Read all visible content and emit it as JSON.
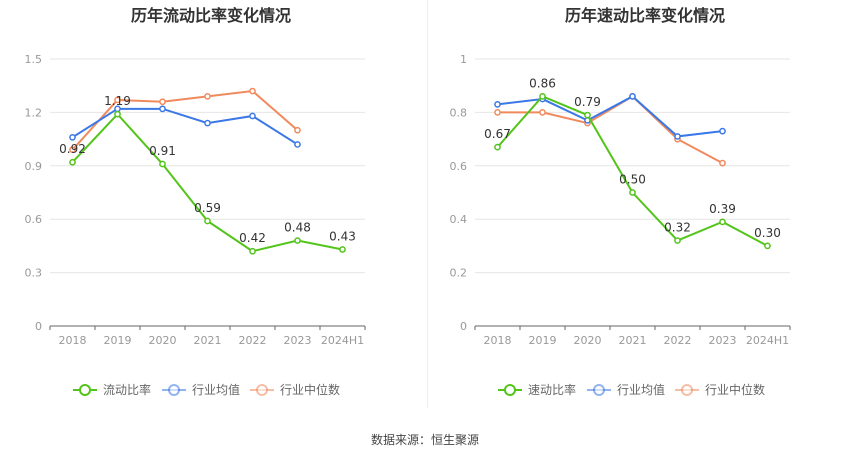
{
  "source_label": "数据来源：恒生聚源",
  "chart_data": [
    {
      "type": "line",
      "title": "历年流动比率变化情况",
      "categories": [
        "2018",
        "2019",
        "2020",
        "2021",
        "2022",
        "2023",
        "2024H1"
      ],
      "ylim": [
        0,
        1.5
      ],
      "yticks": [
        "0",
        "0.3",
        "0.6",
        "0.9",
        "1.2",
        "1.5"
      ],
      "grid": true,
      "legend_position": "bottom",
      "series": [
        {
          "name": "流动比率",
          "color": "#52c41a",
          "values": [
            0.92,
            1.19,
            0.91,
            0.59,
            0.42,
            0.48,
            0.43
          ],
          "labels": [
            "0.92",
            "1.19",
            "0.91",
            "0.59",
            "0.42",
            "0.48",
            "0.43"
          ]
        },
        {
          "name": "行业均值",
          "color": "#3b78e7",
          "values": [
            1.06,
            1.22,
            1.22,
            1.14,
            1.18,
            1.02,
            null
          ]
        },
        {
          "name": "行业中位数",
          "color": "#f08a5d",
          "values": [
            0.99,
            1.27,
            1.26,
            1.29,
            1.32,
            1.1,
            null
          ]
        }
      ]
    },
    {
      "type": "line",
      "title": "历年速动比率变化情况",
      "categories": [
        "2018",
        "2019",
        "2020",
        "2021",
        "2022",
        "2023",
        "2024H1"
      ],
      "ylim": [
        0,
        1
      ],
      "yticks": [
        "0",
        "0.2",
        "0.4",
        "0.6",
        "0.8",
        "1"
      ],
      "grid": true,
      "legend_position": "bottom",
      "series": [
        {
          "name": "速动比率",
          "color": "#52c41a",
          "values": [
            0.67,
            0.86,
            0.79,
            0.5,
            0.32,
            0.39,
            0.3
          ],
          "labels": [
            "0.67",
            "0.86",
            "0.79",
            "0.50",
            "0.32",
            "0.39",
            "0.30"
          ]
        },
        {
          "name": "行业均值",
          "color": "#3b78e7",
          "values": [
            0.83,
            0.85,
            0.77,
            0.86,
            0.71,
            0.73,
            null
          ]
        },
        {
          "name": "行业中位数",
          "color": "#f08a5d",
          "values": [
            0.8,
            0.8,
            0.76,
            0.86,
            0.7,
            0.61,
            null
          ]
        }
      ]
    }
  ]
}
